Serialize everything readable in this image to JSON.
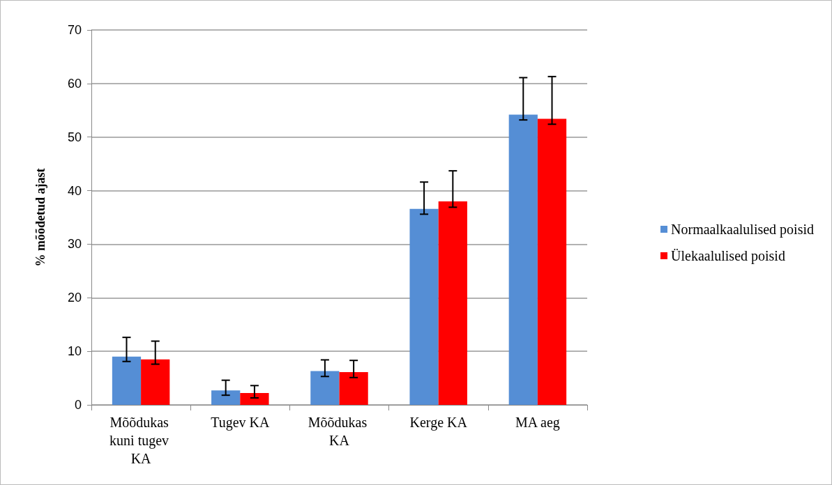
{
  "chart_data": {
    "type": "bar",
    "ylabel": "% mõõdetud ajast",
    "categories": [
      "Mõõdukas kuni tugev KA",
      "Tugev KA",
      "Mõõdukas KA",
      "Kerge KA",
      "MA aeg"
    ],
    "series": [
      {
        "name": "Normaalkaalulised poisid",
        "color": "#558ed5",
        "values": [
          9.0,
          2.7,
          6.3,
          36.6,
          54.2
        ],
        "errors": [
          [
            8.1,
            12.6
          ],
          [
            1.8,
            4.6
          ],
          [
            5.3,
            8.4
          ],
          [
            35.6,
            41.6
          ],
          [
            53.2,
            61.1
          ]
        ]
      },
      {
        "name": "Ülekaalulised poisid",
        "color": "#ff0000",
        "values": [
          8.5,
          2.2,
          6.1,
          38.0,
          53.4
        ],
        "errors": [
          [
            7.6,
            11.9
          ],
          [
            1.3,
            3.6
          ],
          [
            5.1,
            8.3
          ],
          [
            36.9,
            43.7
          ],
          [
            52.4,
            61.3
          ]
        ]
      }
    ],
    "ylim": [
      0,
      70
    ],
    "yticks": [
      0,
      10,
      20,
      30,
      40,
      50,
      60,
      70
    ],
    "grid": "y",
    "legend": "right"
  }
}
